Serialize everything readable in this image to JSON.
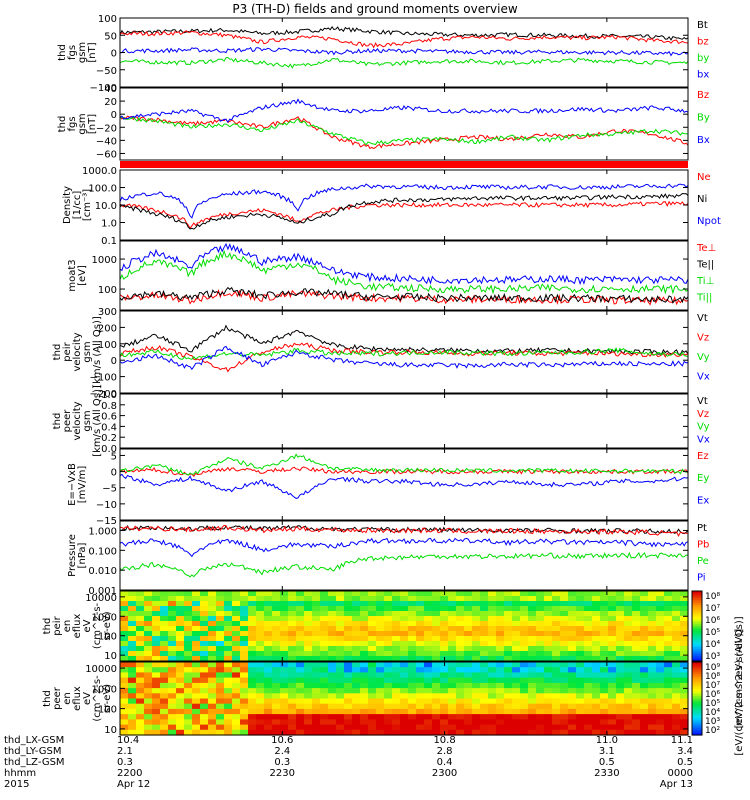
{
  "title": "P3 (TH-D) fields and ground moments overview",
  "chart_data": {
    "type": "line",
    "xlim": [
      10.4,
      11.1
    ],
    "x_ticks": [
      {
        "x": 10.4,
        "L": "10.4",
        "Ly": "2.1",
        "Lz": "0.3",
        "hhmm": "2200",
        "day": "Apr 12"
      },
      {
        "x": 10.6,
        "L": "10.6",
        "Ly": "2.4",
        "Lz": "0.3",
        "hhmm": "2230",
        "day": ""
      },
      {
        "x": 10.8,
        "L": "10.8",
        "Ly": "2.8",
        "Lz": "0.4",
        "hhmm": "2300",
        "day": ""
      },
      {
        "x": 11.0,
        "L": "11.0",
        "Ly": "3.1",
        "Lz": "0.5",
        "hhmm": "2330",
        "day": ""
      },
      {
        "x": 11.1,
        "L": "11.1",
        "Ly": "3.4",
        "Lz": "0.5",
        "hhmm": "0000",
        "day": "Apr 13"
      }
    ],
    "x_labels": [
      "thd_LX-GSM",
      "thd_LY-GSM",
      "thd_LZ-GSM",
      "hhmm",
      "2015"
    ],
    "panels": [
      {
        "ylabel": [
          "thd",
          "fgs",
          "gsm",
          "[nT]"
        ],
        "log": false,
        "ylim": [
          -100,
          100
        ],
        "ticks": [
          "100",
          "50",
          "0",
          "−50",
          "−100"
        ],
        "tickvals": [
          100,
          50,
          0,
          -50,
          -100
        ],
        "legend": [
          {
            "name": "Bt",
            "color": "#000000"
          },
          {
            "name": "bz",
            "color": "#ff0000"
          },
          {
            "name": "by",
            "color": "#00dd00"
          },
          {
            "name": "bx",
            "color": "#0000ff"
          }
        ],
        "series": [
          {
            "name": "Bt",
            "color": "#000000",
            "values": [
              58,
              60,
              62,
              65,
              55,
              60,
              70,
              62,
              55,
              52,
              50,
              52,
              50,
              48,
              47,
              45,
              38
            ]
          },
          {
            "name": "bz",
            "color": "#ff0000",
            "values": [
              55,
              55,
              58,
              50,
              30,
              45,
              40,
              20,
              25,
              40,
              45,
              40,
              45,
              42,
              45,
              35,
              30
            ]
          },
          {
            "name": "by",
            "color": "#00dd00",
            "values": [
              -25,
              -28,
              -30,
              -20,
              -30,
              -40,
              -20,
              -35,
              -30,
              -25,
              -25,
              -30,
              -25,
              -22,
              -25,
              -28,
              -30
            ]
          },
          {
            "name": "bx",
            "color": "#0000ff",
            "values": [
              5,
              5,
              8,
              5,
              10,
              5,
              0,
              5,
              5,
              3,
              2,
              0,
              2,
              0,
              0,
              -2,
              -5
            ]
          }
        ]
      },
      {
        "ylabel": [
          "thd",
          "fgs",
          "gsm",
          "[nT]"
        ],
        "log": false,
        "ylim": [
          -70,
          40
        ],
        "ticks": [
          "40",
          "20",
          "0",
          "−20",
          "−40",
          "−60"
        ],
        "tickvals": [
          40,
          20,
          0,
          -20,
          -40,
          -60
        ],
        "legend": [
          {
            "name": "Bz",
            "color": "#ff0000"
          },
          {
            "name": "By",
            "color": "#00dd00"
          },
          {
            "name": "Bx",
            "color": "#0000ff"
          }
        ],
        "series": [
          {
            "name": "Bz",
            "color": "#ff0000",
            "values": [
              -5,
              -8,
              -15,
              -10,
              -20,
              -5,
              -35,
              -50,
              -45,
              -40,
              -35,
              -38,
              -30,
              -35,
              -25,
              -30,
              -45
            ]
          },
          {
            "name": "By",
            "color": "#00dd00",
            "values": [
              -5,
              -10,
              -20,
              -15,
              -25,
              -10,
              -30,
              -45,
              -40,
              -38,
              -42,
              -35,
              -40,
              -32,
              -30,
              -25,
              -30
            ]
          },
          {
            "name": "Bx",
            "color": "#0000ff",
            "values": [
              -5,
              0,
              5,
              -10,
              10,
              20,
              5,
              5,
              10,
              5,
              5,
              5,
              5,
              8,
              5,
              10,
              5
            ]
          }
        ]
      },
      {
        "ylabel": [
          "Density",
          "[1/cc]",
          "[cm⁻³]"
        ],
        "log": true,
        "ylim": [
          0.1,
          1000
        ],
        "ticks": [
          "1000.0",
          "100.0",
          "10.0",
          "1.0",
          "0.1"
        ],
        "tickvals": [
          1000,
          100,
          10,
          1,
          0.1
        ],
        "legend": [
          {
            "name": "Ne",
            "color": "#ff0000"
          },
          {
            "name": "Ni",
            "color": "#000000"
          },
          {
            "name": "Npot",
            "color": "#0000ff"
          }
        ],
        "series": [
          {
            "name": "Ne",
            "color": "#ff0000",
            "values": [
              10,
              5,
              0.5,
              3,
              5,
              1,
              5,
              10,
              10,
              10,
              10,
              10,
              10,
              10,
              10,
              12,
              12
            ]
          },
          {
            "name": "Ni",
            "color": "#000000",
            "values": [
              8,
              3,
              0.4,
              2,
              3,
              0.8,
              3,
              15,
              20,
              20,
              25,
              25,
              25,
              25,
              30,
              30,
              35
            ]
          },
          {
            "name": "Npot",
            "color": "#0000ff",
            "values": [
              20,
              50,
              1,
              40,
              60,
              5,
              80,
              120,
              110,
              100,
              110,
              100,
              110,
              100,
              110,
              120,
              130
            ]
          }
        ]
      },
      {
        "ylabel": [
          "moat3",
          "[eV]"
        ],
        "log": true,
        "ylim": [
          20,
          4000
        ],
        "ticks": [
          "1000",
          "100"
        ],
        "tickvals": [
          1000,
          100
        ],
        "legend": [
          {
            "name": "Te⊥",
            "color": "#ff0000"
          },
          {
            "name": "Te||",
            "color": "#000000"
          },
          {
            "name": "Ti⊥",
            "color": "#00dd00"
          },
          {
            "name": "Ti||",
            "color": "#00dd00"
          }
        ],
        "series": [
          {
            "name": "Te⊥",
            "color": "#ff0000",
            "values": [
              50,
              60,
              40,
              80,
              50,
              70,
              60,
              50,
              50,
              45,
              45,
              45,
              45,
              45,
              42,
              40,
              40
            ]
          },
          {
            "name": "Te||",
            "color": "#000000",
            "values": [
              55,
              70,
              50,
              90,
              60,
              80,
              70,
              55,
              55,
              50,
              50,
              50,
              50,
              50,
              48,
              45,
              45
            ]
          },
          {
            "name": "Ti⊥",
            "color": "#00dd00",
            "values": [
              200,
              800,
              300,
              1500,
              400,
              700,
              200,
              120,
              110,
              100,
              100,
              100,
              110,
              100,
              105,
              100,
              100
            ]
          },
          {
            "name": "Ti||",
            "color": "#0000ff",
            "values": [
              400,
              1500,
              500,
              2500,
              800,
              1200,
              400,
              250,
              220,
              200,
              210,
              200,
              220,
              200,
              210,
              200,
              200
            ]
          }
        ]
      },
      {
        "ylabel": [
          "thd",
          "peir",
          "velocity",
          "gsm",
          "[km/s (All Qs)]"
        ],
        "log": false,
        "ylim": [
          -200,
          300
        ],
        "ticks": [
          "300",
          "200",
          "100",
          "0",
          "−100",
          "−200"
        ],
        "tickvals": [
          300,
          200,
          100,
          0,
          -100,
          -200
        ],
        "legend": [
          {
            "name": "Vt",
            "color": "#000000"
          },
          {
            "name": "Vz",
            "color": "#ff0000"
          },
          {
            "name": "Vy",
            "color": "#00dd00"
          },
          {
            "name": "Vx",
            "color": "#0000ff"
          }
        ],
        "series": [
          {
            "name": "Vt",
            "color": "#000000",
            "values": [
              80,
              150,
              60,
              200,
              100,
              180,
              90,
              70,
              65,
              60,
              60,
              55,
              60,
              55,
              55,
              50,
              50
            ]
          },
          {
            "name": "Vz",
            "color": "#ff0000",
            "values": [
              40,
              80,
              20,
              -60,
              50,
              100,
              60,
              50,
              50,
              45,
              40,
              45,
              40,
              45,
              40,
              35,
              35
            ]
          },
          {
            "name": "Vy",
            "color": "#00dd00",
            "values": [
              30,
              50,
              10,
              40,
              30,
              60,
              40,
              40,
              45,
              50,
              45,
              40,
              45,
              50,
              60,
              40,
              35
            ]
          },
          {
            "name": "Vx",
            "color": "#0000ff",
            "values": [
              -20,
              30,
              -50,
              80,
              -30,
              50,
              0,
              -20,
              -30,
              -30,
              -35,
              -25,
              -30,
              -25,
              -20,
              -25,
              -20
            ]
          }
        ]
      },
      {
        "ylabel": [
          "thd",
          "peer",
          "velocity",
          "gsm",
          "[km/s (All Qs)]"
        ],
        "log": false,
        "ylim": [
          0,
          1
        ],
        "ticks": [
          "1.0",
          "0.8",
          "0.6",
          "0.4",
          "0.2",
          "0.0"
        ],
        "tickvals": [
          1,
          0.8,
          0.6,
          0.4,
          0.2,
          0
        ],
        "legend": [
          {
            "name": "Vt",
            "color": "#000000"
          },
          {
            "name": "Vz",
            "color": "#ff0000"
          },
          {
            "name": "Vy",
            "color": "#00dd00"
          },
          {
            "name": "Vx",
            "color": "#0000ff"
          }
        ],
        "series": []
      },
      {
        "ylabel": [
          "E=−VxB",
          "[mV/m]"
        ],
        "log": false,
        "ylim": [
          -15,
          7
        ],
        "ticks": [
          "5",
          "0",
          "−5",
          "−10",
          "−15"
        ],
        "tickvals": [
          5,
          0,
          -5,
          -10,
          -15
        ],
        "legend": [
          {
            "name": "Ez",
            "color": "#ff0000"
          },
          {
            "name": "Ey",
            "color": "#00dd00"
          },
          {
            "name": "Ex",
            "color": "#0000ff"
          }
        ],
        "series": [
          {
            "name": "Ez",
            "color": "#ff0000",
            "values": [
              0,
              0.5,
              -1,
              1,
              0,
              1,
              0,
              0,
              0,
              0,
              0,
              0,
              0,
              0,
              0,
              0,
              0
            ]
          },
          {
            "name": "Ey",
            "color": "#00dd00",
            "values": [
              0,
              2,
              -1,
              4,
              1,
              5,
              1,
              0.5,
              0.5,
              0.5,
              0.3,
              0.3,
              0.3,
              0.2,
              0.2,
              0.2,
              0
            ]
          },
          {
            "name": "Ex",
            "color": "#0000ff",
            "values": [
              -1,
              -4,
              -2,
              -6,
              -3,
              -8,
              -2,
              -3,
              -3,
              -4,
              -4,
              -3,
              -4,
              -4,
              -3,
              -3,
              -2
            ]
          }
        ]
      },
      {
        "ylabel": [
          "Pressure",
          "[nPa]"
        ],
        "log": true,
        "ylim": [
          0.001,
          3
        ],
        "ticks": [
          "1.000",
          "0.100",
          "0.010",
          "0.001"
        ],
        "tickvals": [
          1,
          0.1,
          0.01,
          0.001
        ],
        "legend": [
          {
            "name": "Pt",
            "color": "#000000"
          },
          {
            "name": "Pb",
            "color": "#ff0000"
          },
          {
            "name": "Pe",
            "color": "#00dd00"
          },
          {
            "name": "Pi",
            "color": "#0000ff"
          }
        ],
        "series": [
          {
            "name": "Pt",
            "color": "#000000",
            "values": [
              1.3,
              1.4,
              1.2,
              1.5,
              1.2,
              1.4,
              1.2,
              1.1,
              1.1,
              1.1,
              1.0,
              1.0,
              1.0,
              0.95,
              0.95,
              0.9,
              0.9
            ]
          },
          {
            "name": "Pb",
            "color": "#ff0000",
            "values": [
              1.2,
              1.3,
              1.1,
              1.4,
              1.0,
              1.2,
              1.1,
              1.0,
              1.0,
              1.0,
              0.9,
              0.95,
              0.9,
              0.9,
              0.85,
              0.8,
              0.6
            ]
          },
          {
            "name": "Pe",
            "color": "#00dd00",
            "values": [
              0.01,
              0.02,
              0.005,
              0.02,
              0.008,
              0.015,
              0.01,
              0.04,
              0.045,
              0.05,
              0.05,
              0.05,
              0.055,
              0.05,
              0.055,
              0.055,
              0.06
            ]
          },
          {
            "name": "Pi",
            "color": "#0000ff",
            "values": [
              0.2,
              0.3,
              0.05,
              0.3,
              0.1,
              0.2,
              0.15,
              0.3,
              0.3,
              0.3,
              0.3,
              0.25,
              0.28,
              0.25,
              0.25,
              0.2,
              0.2
            ]
          }
        ]
      }
    ],
    "spectrograms": [
      {
        "ylabel": [
          "thd",
          "peir",
          "en",
          "eflux",
          "eV",
          "(cm^2-s-",
          "sr-eV)"
        ],
        "ylim": [
          5,
          20000
        ],
        "ticks": [
          "10000",
          "1000",
          "100",
          "10"
        ],
        "tickvals": [
          10000,
          1000,
          100,
          10
        ],
        "colorbar": {
          "label": "[eV/(cm^2-s-sr-eV) (All Qs)]",
          "ticks": [
            "10⁸",
            "10⁷",
            "10⁶",
            "10⁵",
            "10⁴",
            "10³"
          ]
        }
      },
      {
        "ylabel": [
          "thd",
          "peer",
          "en",
          "eflux",
          "eV",
          "(cm^2-s-",
          "sr-eV)"
        ],
        "ylim": [
          5,
          20000
        ],
        "ticks": [
          "10000",
          "1000",
          "100",
          "10"
        ],
        "tickvals": [
          10000,
          1000,
          100,
          10
        ],
        "colorbar": {
          "label": "[eV/(cm^2-s-sr-eV)]",
          "ticks": [
            "10⁹",
            "10⁸",
            "10⁷",
            "10⁶",
            "10⁵",
            "10⁴",
            "10³",
            "10²"
          ]
        }
      }
    ]
  }
}
